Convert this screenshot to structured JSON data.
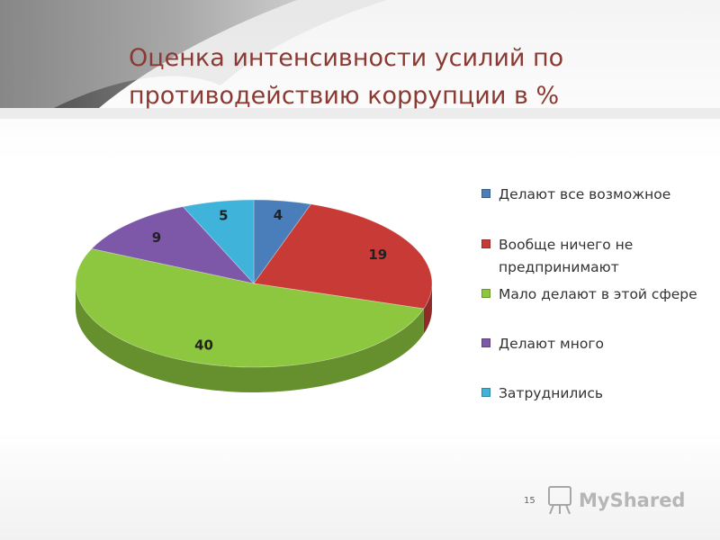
{
  "slide": {
    "title": "Оценка интенсивности усилий по противодействию коррупции в %",
    "page_number": "15",
    "watermark": "MyShared"
  },
  "chart_data": {
    "type": "pie",
    "title": "Оценка интенсивности усилий по противодействию коррупции в %",
    "style": "3d",
    "legend_position": "right",
    "categories": [
      "Делают все возможное",
      "Вообще ничего не предпринимают",
      "Мало делают в этой сфере",
      "Делают много",
      "Затруднились"
    ],
    "values": [
      4,
      19,
      40,
      9,
      5
    ],
    "data_labels": [
      "4",
      "19",
      "40",
      "9",
      "5"
    ],
    "colors": [
      "#4a7ebb",
      "#c83a36",
      "#8dc63f",
      "#7d57a8",
      "#3fb3d9"
    ]
  }
}
